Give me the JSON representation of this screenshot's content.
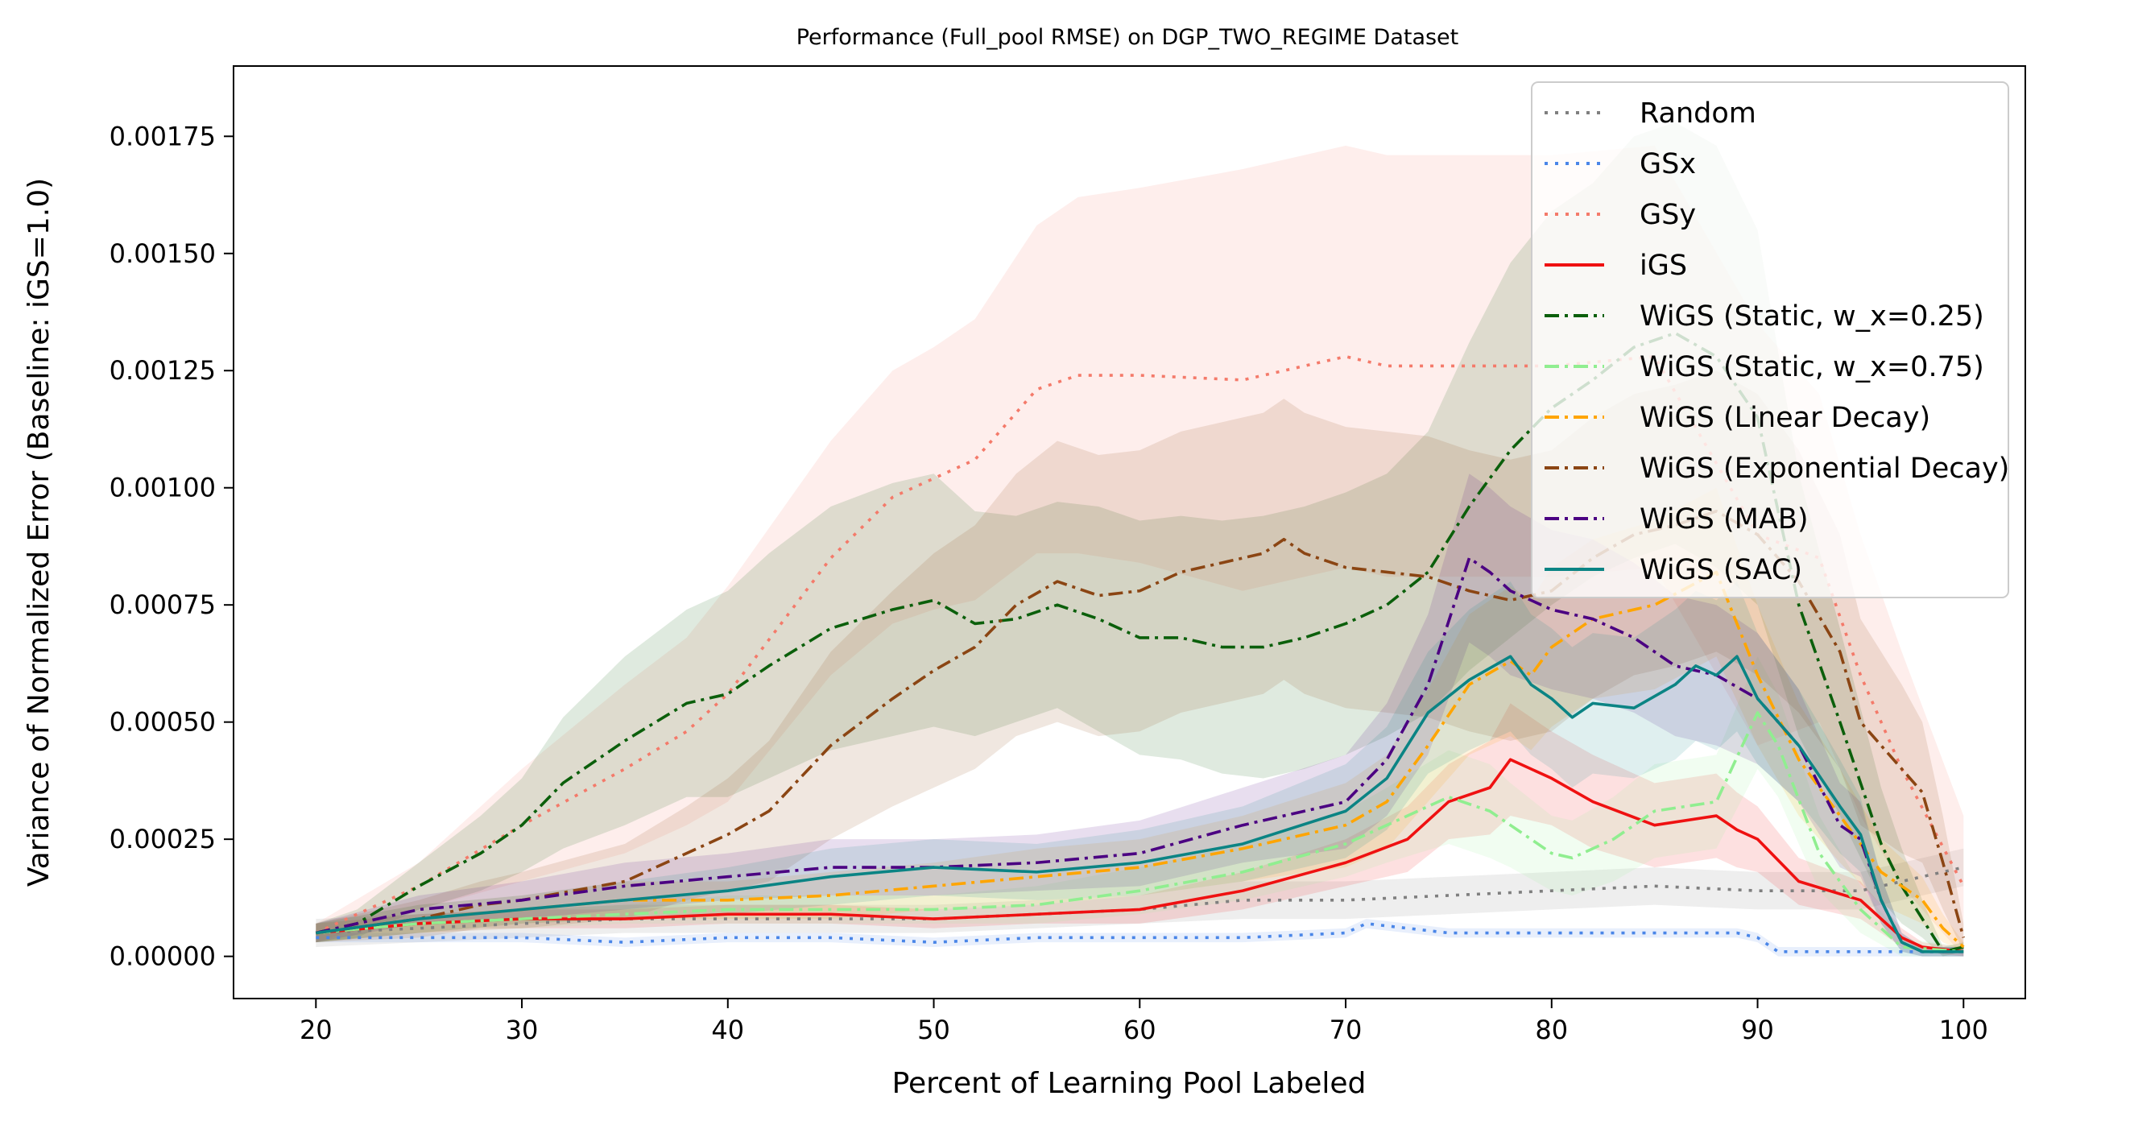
{
  "chart_data": {
    "type": "line",
    "title": "Performance (Full_pool RMSE) on DGP_TWO_REGIME Dataset",
    "xlabel": "Percent of Learning Pool Labeled",
    "ylabel": "Variance of Normalized Error (Baseline: iGS=1.0)",
    "xlim": [
      16,
      103
    ],
    "ylim": [
      -9e-05,
      0.0019
    ],
    "xticks": [
      20,
      30,
      40,
      50,
      60,
      70,
      80,
      90,
      100
    ],
    "xtick_labels": [
      "20",
      "30",
      "40",
      "50",
      "60",
      "70",
      "80",
      "90",
      "100"
    ],
    "yticks": [
      0,
      0.00025,
      0.0005,
      0.00075,
      0.001,
      0.00125,
      0.0015,
      0.00175
    ],
    "ytick_labels": [
      "0.00000",
      "0.00025",
      "0.00050",
      "0.00075",
      "0.00100",
      "0.00125",
      "0.00150",
      "0.00175"
    ],
    "grid": false,
    "legend_position": "top-right",
    "series": [
      {
        "name": "Random",
        "color": "#7f7f7f",
        "dash": "dotted",
        "x": [
          20,
          25,
          30,
          35,
          40,
          45,
          50,
          55,
          60,
          65,
          70,
          75,
          80,
          85,
          90,
          95,
          100
        ],
        "y": [
          5e-05,
          6e-05,
          7e-05,
          8e-05,
          8e-05,
          8e-05,
          8e-05,
          9e-05,
          0.0001,
          0.00012,
          0.00012,
          0.00013,
          0.00014,
          0.00015,
          0.00014,
          0.00014,
          0.00019
        ],
        "band": [
          3e-05,
          3e-05,
          3e-05,
          3e-05,
          3e-05,
          3e-05,
          3e-05,
          3e-05,
          3e-05,
          4e-05,
          4e-05,
          4e-05,
          4e-05,
          4e-05,
          4e-05,
          4e-05,
          4e-05
        ]
      },
      {
        "name": "GSx",
        "color": "#4a86e8",
        "dash": "dotted",
        "x": [
          20,
          25,
          30,
          35,
          40,
          45,
          50,
          55,
          60,
          65,
          70,
          71,
          73,
          75,
          80,
          85,
          89,
          90,
          91,
          95,
          100
        ],
        "y": [
          4e-05,
          4e-05,
          4e-05,
          3e-05,
          4e-05,
          4e-05,
          3e-05,
          4e-05,
          4e-05,
          4e-05,
          5e-05,
          7e-05,
          6e-05,
          5e-05,
          5e-05,
          5e-05,
          5e-05,
          4e-05,
          1e-05,
          1e-05,
          1e-05
        ],
        "band": [
          1e-05,
          1e-05,
          1e-05,
          1e-05,
          1e-05,
          1e-05,
          1e-05,
          1e-05,
          1e-05,
          1e-05,
          1e-05,
          1e-05,
          1e-05,
          1e-05,
          1e-05,
          1e-05,
          1e-05,
          1e-05,
          1e-05,
          1e-05,
          1e-05
        ]
      },
      {
        "name": "GSy",
        "color": "#f47a6a",
        "dash": "dotted",
        "x": [
          20,
          25,
          30,
          35,
          38,
          40,
          45,
          48,
          50,
          52,
          55,
          57,
          60,
          65,
          70,
          72,
          75,
          80,
          85,
          90,
          93,
          95,
          97,
          100
        ],
        "y": [
          5e-05,
          0.00015,
          0.00028,
          0.0004,
          0.00048,
          0.00056,
          0.00085,
          0.00098,
          0.00102,
          0.00106,
          0.00121,
          0.00124,
          0.00124,
          0.00123,
          0.00128,
          0.00126,
          0.00126,
          0.00126,
          0.00128,
          0.0009,
          0.00085,
          0.0006,
          0.0004,
          0.00015
        ],
        "band": [
          2e-05,
          5e-05,
          0.00012,
          0.00018,
          0.0002,
          0.00023,
          0.00025,
          0.00027,
          0.00028,
          0.0003,
          0.00035,
          0.00038,
          0.0004,
          0.00045,
          0.00045,
          0.00045,
          0.00045,
          0.00045,
          0.00045,
          0.00045,
          0.00035,
          0.0003,
          0.00025,
          0.00015
        ]
      },
      {
        "name": "iGS",
        "color": "#ef1111",
        "dash": "solid",
        "x": [
          20,
          25,
          30,
          35,
          40,
          45,
          50,
          55,
          60,
          65,
          70,
          73,
          75,
          77,
          78,
          80,
          82,
          85,
          88,
          89,
          90,
          92,
          95,
          97,
          98,
          100
        ],
        "y": [
          5e-05,
          7e-05,
          8e-05,
          8e-05,
          9e-05,
          9e-05,
          8e-05,
          9e-05,
          0.0001,
          0.00014,
          0.0002,
          0.00025,
          0.00033,
          0.00036,
          0.00042,
          0.00038,
          0.00033,
          0.00028,
          0.0003,
          0.00027,
          0.00025,
          0.00016,
          0.00012,
          4e-05,
          2e-05,
          1e-05
        ],
        "band": [
          2e-05,
          2e-05,
          2e-05,
          2e-05,
          2e-05,
          2e-05,
          2e-05,
          2e-05,
          3e-05,
          4e-05,
          5e-05,
          7e-05,
          8e-05,
          0.0001,
          0.00012,
          0.0001,
          0.0001,
          9e-05,
          9e-05,
          8e-05,
          7e-05,
          5e-05,
          4e-05,
          2e-05,
          1e-05,
          1e-05
        ]
      },
      {
        "name": "WiGS (Static, w_x=0.25)",
        "color": "#0b5f0b",
        "dash": "dashdot",
        "x": [
          20,
          22,
          25,
          28,
          30,
          32,
          35,
          38,
          40,
          42,
          45,
          48,
          50,
          52,
          54,
          56,
          58,
          60,
          62,
          64,
          66,
          68,
          70,
          72,
          74,
          76,
          78,
          80,
          82,
          84,
          86,
          88,
          90,
          92,
          94,
          96,
          97,
          98,
          99,
          100
        ],
        "y": [
          5e-05,
          7e-05,
          0.00015,
          0.00022,
          0.00028,
          0.00037,
          0.00046,
          0.00054,
          0.00056,
          0.00062,
          0.0007,
          0.00074,
          0.00076,
          0.00071,
          0.00072,
          0.00075,
          0.00072,
          0.00068,
          0.00068,
          0.00066,
          0.00066,
          0.00068,
          0.00071,
          0.00075,
          0.00082,
          0.00096,
          0.00108,
          0.00117,
          0.00123,
          0.0013,
          0.00133,
          0.00128,
          0.00115,
          0.00075,
          0.0005,
          0.00024,
          0.00015,
          8e-05,
          1e-05,
          2e-05
        ],
        "band": [
          2e-05,
          3e-05,
          5e-05,
          8e-05,
          0.0001,
          0.00014,
          0.00018,
          0.0002,
          0.00022,
          0.00024,
          0.00026,
          0.00027,
          0.00027,
          0.00024,
          0.00022,
          0.00022,
          0.00024,
          0.00025,
          0.00026,
          0.00027,
          0.00028,
          0.00028,
          0.00028,
          0.00028,
          0.0003,
          0.00035,
          0.0004,
          0.00042,
          0.00042,
          0.00045,
          0.00045,
          0.00045,
          0.0004,
          0.00028,
          0.0002,
          0.00012,
          8e-05,
          4e-05,
          1e-05,
          1e-05
        ]
      },
      {
        "name": "WiGS (Static, w_x=0.75)",
        "color": "#90ee90",
        "dash": "dashdot",
        "x": [
          20,
          25,
          30,
          35,
          40,
          45,
          50,
          55,
          60,
          65,
          70,
          72,
          75,
          77,
          78,
          80,
          81,
          83,
          85,
          88,
          90,
          91,
          93,
          95,
          97,
          100
        ],
        "y": [
          5e-05,
          7e-05,
          8e-05,
          9e-05,
          0.0001,
          0.0001,
          0.0001,
          0.00011,
          0.00014,
          0.00018,
          0.00024,
          0.00028,
          0.00034,
          0.00031,
          0.00028,
          0.00022,
          0.00021,
          0.00025,
          0.00031,
          0.00033,
          0.00052,
          0.00045,
          0.00022,
          0.0001,
          2e-05,
          1e-05
        ],
        "band": [
          2e-05,
          2e-05,
          2e-05,
          2e-05,
          3e-05,
          3e-05,
          3e-05,
          4e-05,
          5e-05,
          6e-05,
          7e-05,
          8e-05,
          0.0001,
          0.0001,
          9e-05,
          8e-05,
          8e-05,
          9e-05,
          0.0001,
          0.0001,
          0.00012,
          0.00011,
          8e-05,
          5e-05,
          2e-05,
          1e-05
        ]
      },
      {
        "name": "WiGS (Linear Decay)",
        "color": "#ffa500",
        "dash": "dashdot",
        "x": [
          20,
          25,
          30,
          35,
          40,
          45,
          50,
          55,
          60,
          65,
          70,
          72,
          74,
          76,
          78,
          79,
          80,
          82,
          85,
          88,
          90,
          92,
          94,
          96,
          98,
          99,
          100
        ],
        "y": [
          5e-05,
          8e-05,
          0.0001,
          0.00012,
          0.00012,
          0.00013,
          0.00015,
          0.00017,
          0.00019,
          0.00023,
          0.00028,
          0.00033,
          0.00045,
          0.00058,
          0.00063,
          0.0006,
          0.00066,
          0.00072,
          0.00075,
          0.00082,
          0.0006,
          0.00042,
          0.0003,
          0.00018,
          0.00012,
          6e-05,
          2e-05
        ],
        "band": [
          2e-05,
          3e-05,
          3e-05,
          4e-05,
          4e-05,
          5e-05,
          5e-05,
          6e-05,
          6e-05,
          7e-05,
          9e-05,
          0.0001,
          0.00012,
          0.00015,
          0.00016,
          0.00016,
          0.00017,
          0.00017,
          0.00018,
          0.00018,
          0.00015,
          0.00012,
          0.0001,
          7e-05,
          5e-05,
          3e-05,
          1e-05
        ]
      },
      {
        "name": "WiGS (Exponential Decay)",
        "color": "#8b4513",
        "dash": "dashdot",
        "x": [
          20,
          25,
          28,
          30,
          35,
          38,
          40,
          42,
          45,
          48,
          50,
          52,
          54,
          56,
          58,
          60,
          62,
          64,
          66,
          67,
          68,
          70,
          72,
          74,
          76,
          78,
          80,
          82,
          84,
          86,
          88,
          90,
          92,
          94,
          95,
          96,
          97,
          98,
          99,
          100
        ],
        "y": [
          5e-05,
          8e-05,
          0.00011,
          0.00012,
          0.00016,
          0.00022,
          0.00026,
          0.00031,
          0.00045,
          0.00055,
          0.00061,
          0.00066,
          0.00075,
          0.0008,
          0.00077,
          0.00078,
          0.00082,
          0.00084,
          0.00086,
          0.00089,
          0.00086,
          0.00083,
          0.00082,
          0.00081,
          0.00078,
          0.00076,
          0.00078,
          0.00085,
          0.0009,
          0.00092,
          0.00095,
          0.0009,
          0.0008,
          0.00065,
          0.0005,
          0.00045,
          0.0004,
          0.00035,
          0.0002,
          4e-05
        ],
        "band": [
          2e-05,
          4e-05,
          5e-05,
          6e-05,
          8e-05,
          0.0001,
          0.00012,
          0.00015,
          0.0002,
          0.00023,
          0.00025,
          0.00026,
          0.00028,
          0.0003,
          0.0003,
          0.0003,
          0.0003,
          0.0003,
          0.0003,
          0.0003,
          0.0003,
          0.0003,
          0.0003,
          0.0003,
          0.0003,
          0.0003,
          0.0003,
          0.0003,
          0.0003,
          0.0003,
          0.0003,
          0.0003,
          0.00028,
          0.00025,
          0.00022,
          0.0002,
          0.00018,
          0.00015,
          0.0001,
          3e-05
        ]
      },
      {
        "name": "WiGS (MAB)",
        "color": "#4b0082",
        "dash": "dashdot",
        "x": [
          20,
          25,
          30,
          35,
          40,
          45,
          50,
          55,
          60,
          65,
          70,
          72,
          74,
          76,
          77,
          78,
          80,
          82,
          84,
          86,
          88,
          90,
          92,
          94,
          95,
          96,
          97,
          98,
          100
        ],
        "y": [
          5e-05,
          0.0001,
          0.00012,
          0.00015,
          0.00017,
          0.00019,
          0.00019,
          0.0002,
          0.00022,
          0.00028,
          0.00033,
          0.00042,
          0.00058,
          0.00085,
          0.00082,
          0.00078,
          0.00074,
          0.00072,
          0.00068,
          0.00062,
          0.0006,
          0.00055,
          0.00045,
          0.00028,
          0.00025,
          0.00012,
          3e-05,
          1e-05,
          1e-05
        ],
        "band": [
          2e-05,
          3e-05,
          4e-05,
          5e-05,
          5e-05,
          6e-05,
          6e-05,
          6e-05,
          7e-05,
          8e-05,
          0.0001,
          0.00012,
          0.00015,
          0.00018,
          0.00018,
          0.00018,
          0.00017,
          0.00017,
          0.00016,
          0.00015,
          0.00015,
          0.00014,
          0.00012,
          9e-05,
          8e-05,
          5e-05,
          2e-05,
          1e-05,
          1e-05
        ]
      },
      {
        "name": "WiGS (SAC)",
        "color": "#0b8484",
        "dash": "solid",
        "x": [
          20,
          25,
          30,
          35,
          40,
          45,
          50,
          55,
          60,
          65,
          70,
          72,
          74,
          76,
          78,
          79,
          80,
          81,
          82,
          84,
          86,
          87,
          88,
          89,
          90,
          92,
          94,
          95,
          96,
          97,
          98,
          100
        ],
        "y": [
          5e-05,
          8e-05,
          0.0001,
          0.00012,
          0.00014,
          0.00017,
          0.00019,
          0.00018,
          0.0002,
          0.00024,
          0.00031,
          0.00038,
          0.00052,
          0.00059,
          0.00064,
          0.00058,
          0.00055,
          0.00051,
          0.00054,
          0.00053,
          0.00058,
          0.00062,
          0.0006,
          0.00064,
          0.00055,
          0.00045,
          0.00032,
          0.00026,
          0.00012,
          3e-05,
          1e-05,
          1e-05
        ],
        "band": [
          2e-05,
          3e-05,
          3e-05,
          4e-05,
          5e-05,
          6e-05,
          6e-05,
          6e-05,
          7e-05,
          8e-05,
          0.0001,
          0.00011,
          0.00013,
          0.00015,
          0.00016,
          0.00015,
          0.00015,
          0.00015,
          0.00015,
          0.00015,
          0.00016,
          0.00016,
          0.00016,
          0.00016,
          0.00014,
          0.00012,
          0.0001,
          8e-05,
          5e-05,
          2e-05,
          1e-05,
          1e-05
        ]
      }
    ]
  }
}
